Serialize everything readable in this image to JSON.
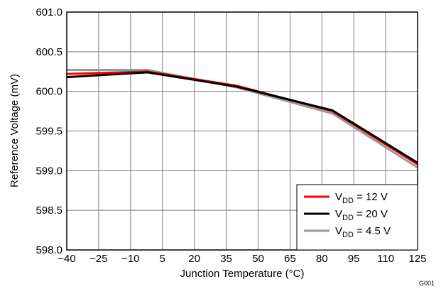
{
  "chart_data": {
    "type": "line",
    "title": "",
    "xlabel": "Junction Temperature (°C)",
    "ylabel": "Reference Voltage (mV)",
    "xlim": [
      -40,
      125
    ],
    "ylim": [
      598.0,
      601.0
    ],
    "x_ticks": [
      -40,
      -25,
      -10,
      5,
      20,
      35,
      50,
      65,
      80,
      95,
      110,
      125
    ],
    "x_tick_labels": [
      "−40",
      "−25",
      "−10",
      "5",
      "20",
      "35",
      "50",
      "65",
      "80",
      "95",
      "110",
      "125"
    ],
    "y_ticks": [
      598.0,
      598.5,
      599.0,
      599.5,
      600.0,
      600.5,
      601.0
    ],
    "y_tick_labels": [
      "598.0",
      "598.5",
      "599.0",
      "599.5",
      "600.0",
      "600.5",
      "601.0"
    ],
    "grid": true,
    "legend_position": "bottom-right",
    "figure_id": "G001",
    "series": [
      {
        "name": "V_DD = 12 V",
        "name_parts": {
          "main": "V",
          "sub": "DD",
          "rest": " = 12 V"
        },
        "color": "#ff0000",
        "x": [
          -40,
          -2,
          40,
          85,
          125
        ],
        "y": [
          600.22,
          600.25,
          600.07,
          599.75,
          599.08
        ]
      },
      {
        "name": "V_DD = 20 V",
        "name_parts": {
          "main": "V",
          "sub": "DD",
          "rest": " = 20 V"
        },
        "color": "#000000",
        "x": [
          -40,
          -2,
          40,
          85,
          125
        ],
        "y": [
          600.18,
          600.24,
          600.06,
          599.76,
          599.1
        ]
      },
      {
        "name": "V_DD = 4.5 V",
        "name_parts": {
          "main": "V",
          "sub": "DD",
          "rest": " = 4.5 V"
        },
        "color": "#999999",
        "x": [
          -40,
          -2,
          40,
          85,
          125
        ],
        "y": [
          600.27,
          600.27,
          600.05,
          599.72,
          599.04
        ]
      }
    ]
  }
}
